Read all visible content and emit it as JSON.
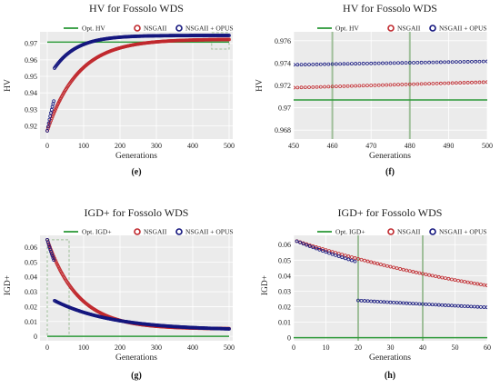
{
  "colors": {
    "panel_bg": "#ebebeb",
    "grid": "#ffffff",
    "opt": "#2e9a3a",
    "nsga2": "#c0282d",
    "opus": "#14167e",
    "inset_box": "#9fbf9a"
  },
  "chart_data": [
    {
      "id": "e",
      "type": "line",
      "subplot_label": "(e)",
      "title": "HV for Fossolo WDS",
      "xlabel": "Generations",
      "ylabel": "HV",
      "xlim": [
        -20,
        510
      ],
      "ylim": [
        0.912,
        0.977
      ],
      "xticks": [
        0,
        100,
        200,
        300,
        400,
        500
      ],
      "xtick_labels": [
        "0",
        "100",
        "200",
        "300",
        "400",
        "500"
      ],
      "yticks": [
        0.92,
        0.93,
        0.94,
        0.95,
        0.96,
        0.97
      ],
      "ytick_labels": [
        "0.92",
        "0.93",
        "0.94",
        "0.95",
        "0.96",
        "0.97"
      ],
      "grid": true,
      "legend": {
        "placement": "top",
        "entries": [
          "Opt. HV",
          "NSGAII",
          "NSGAII + OPUS"
        ]
      },
      "series": [
        {
          "name": "Opt. HV",
          "kind": "hline",
          "value": 0.9707,
          "x": [
            0,
            500
          ]
        },
        {
          "name": "NSGAII",
          "kind": "markers",
          "model": "exp",
          "y0": 0.917,
          "yinf": 0.9725,
          "tau": 85,
          "x": [
            0,
            500
          ],
          "step": 2
        },
        {
          "name": "NSGAII + OPUS",
          "kind": "markers",
          "model": "exp",
          "y0": 0.917,
          "yinf": 0.9745,
          "tau": 48,
          "x": [
            0,
            500
          ],
          "step": 2,
          "jump": {
            "at": 20,
            "yinf": 0.9748,
            "y_at": 0.955,
            "tau": 62
          }
        }
      ],
      "annotations": [
        {
          "type": "dashed-box",
          "x": [
            452,
            500
          ],
          "y": [
            0.9665,
            0.9765
          ]
        }
      ]
    },
    {
      "id": "f",
      "type": "line",
      "subplot_label": "(f)",
      "title": "HV for Fossolo WDS",
      "xlabel": "Generations",
      "ylabel": "HV",
      "xlim": [
        450,
        500
      ],
      "ylim": [
        0.9672,
        0.9768
      ],
      "xticks": [
        450,
        460,
        470,
        480,
        490,
        500
      ],
      "xtick_labels": [
        "450",
        "460",
        "470",
        "480",
        "490",
        "500"
      ],
      "yticks": [
        0.968,
        0.97,
        0.972,
        0.974,
        0.976
      ],
      "ytick_labels": [
        "0.968",
        "0.97",
        "0.972",
        "0.974",
        "0.976"
      ],
      "grid": true,
      "vlines": [
        460,
        480
      ],
      "legend": {
        "placement": "top",
        "entries": [
          "Opt. HV",
          "NSGAII",
          "NSGAII + OPUS"
        ]
      },
      "series": [
        {
          "name": "Opt. HV",
          "kind": "hline",
          "value": 0.9707,
          "x": [
            450,
            500
          ]
        },
        {
          "name": "NSGAII",
          "kind": "markers",
          "model": "linear",
          "y_start": 0.9718,
          "y_end": 0.9723,
          "x": [
            450,
            500
          ],
          "step": 1
        },
        {
          "name": "NSGAII + OPUS",
          "kind": "markers",
          "model": "linear",
          "y_start": 0.97385,
          "y_end": 0.97415,
          "x": [
            450,
            500
          ],
          "step": 1
        }
      ]
    },
    {
      "id": "g",
      "type": "line",
      "subplot_label": "(g)",
      "title": "IGD+ for Fossolo WDS",
      "xlabel": "Generations",
      "ylabel": "IGD+",
      "xlim": [
        -20,
        510
      ],
      "ylim": [
        -0.003,
        0.068
      ],
      "xticks": [
        0,
        100,
        200,
        300,
        400,
        500
      ],
      "xtick_labels": [
        "0",
        "100",
        "200",
        "300",
        "400",
        "500"
      ],
      "yticks": [
        0,
        0.01,
        0.02,
        0.03,
        0.04,
        0.05,
        0.06
      ],
      "ytick_labels": [
        "0",
        "0.01",
        "0.02",
        "0.03",
        "0.04",
        "0.05",
        "0.06"
      ],
      "grid": true,
      "legend": {
        "placement": "top",
        "entries": [
          "Opt. IGD+",
          "NSGAII",
          "NSGAII + OPUS"
        ]
      },
      "series": [
        {
          "name": "Opt. IGD+",
          "kind": "hline",
          "value": 0.0,
          "x": [
            0,
            500
          ]
        },
        {
          "name": "NSGAII",
          "kind": "markers",
          "model": "exp",
          "y0": 0.065,
          "yinf": 0.005,
          "tau": 85,
          "x": [
            0,
            500
          ],
          "step": 2
        },
        {
          "name": "NSGAII + OPUS",
          "kind": "markers",
          "model": "exp",
          "y0": 0.065,
          "yinf": 0.005,
          "tau": 70,
          "x": [
            0,
            500
          ],
          "step": 2,
          "jump": {
            "at": 20,
            "y_at": 0.024,
            "yinf": 0.004,
            "tau": 160
          }
        }
      ],
      "annotations": [
        {
          "type": "dashed-box",
          "x": [
            0,
            60
          ],
          "y": [
            0.0,
            0.065
          ]
        }
      ]
    },
    {
      "id": "h",
      "type": "line",
      "subplot_label": "(h)",
      "title": "IGD+ for Fossolo WDS",
      "xlabel": "Generations",
      "ylabel": "IGD+",
      "xlim": [
        0,
        60
      ],
      "ylim": [
        -0.002,
        0.066
      ],
      "xticks": [
        0,
        10,
        20,
        30,
        40,
        50,
        60
      ],
      "xtick_labels": [
        "0",
        "10",
        "20",
        "30",
        "40",
        "50",
        "60"
      ],
      "yticks": [
        0,
        0.01,
        0.02,
        0.03,
        0.04,
        0.05,
        0.06
      ],
      "ytick_labels": [
        "0",
        "0.01",
        "0.02",
        "0.03",
        "0.04",
        "0.05",
        "0.06"
      ],
      "grid": true,
      "vlines": [
        20,
        40
      ],
      "legend": {
        "placement": "top",
        "entries": [
          "Opt. IGD+",
          "NSGAII",
          "NSGAII + OPUS"
        ]
      },
      "series": [
        {
          "name": "Opt. IGD+",
          "kind": "hline",
          "value": 0.0,
          "x": [
            0,
            60
          ]
        },
        {
          "name": "NSGAII",
          "kind": "markers",
          "model": "exp",
          "y0": 0.063,
          "yinf": 0.005,
          "tau": 85,
          "x": [
            1,
            60
          ],
          "step": 1
        },
        {
          "name": "NSGAII + OPUS",
          "kind": "markers",
          "model": "exp",
          "y0": 0.063,
          "yinf": 0.005,
          "tau": 70,
          "x": [
            1,
            60
          ],
          "step": 1,
          "jump": {
            "at": 20,
            "y_at": 0.024,
            "yinf": 0.004,
            "tau": 160
          }
        }
      ]
    }
  ]
}
